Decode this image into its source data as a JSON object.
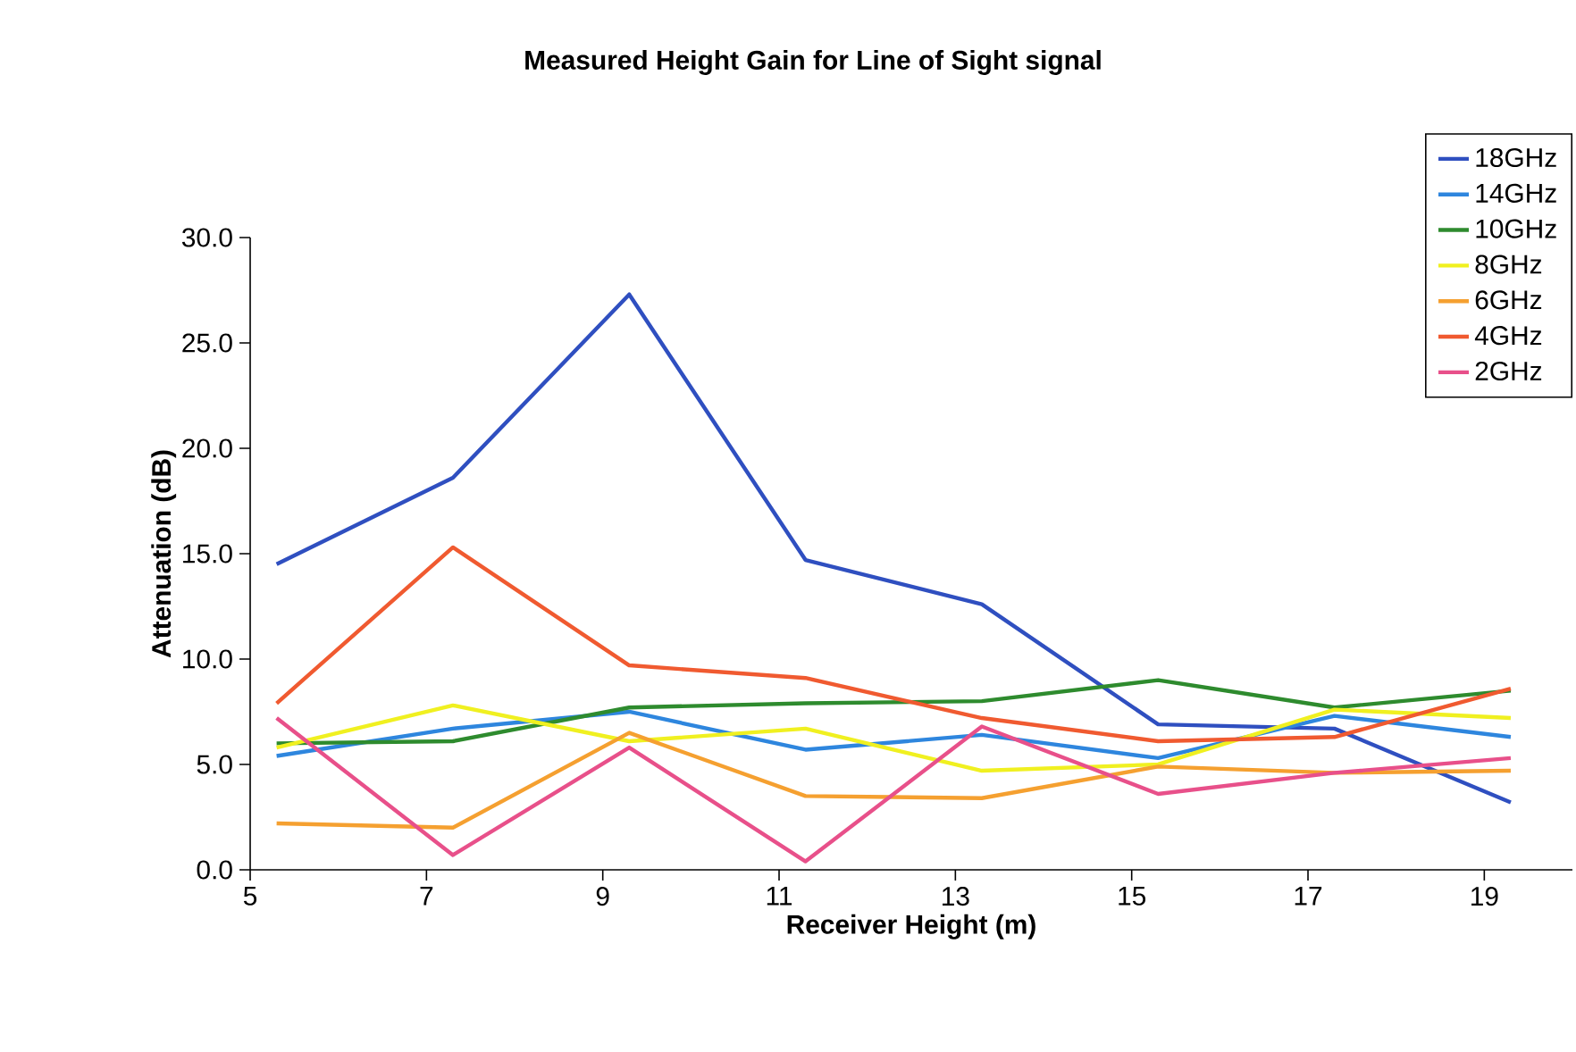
{
  "chart_data": {
    "type": "line",
    "title": "Measured Height Gain for Line of Sight signal",
    "xlabel": "Receiver Height (m)",
    "ylabel": "Attenuation (dB)",
    "x": [
      5.3,
      7.3,
      9.3,
      11.3,
      13.3,
      15.3,
      17.3,
      19.3
    ],
    "xlim": [
      5,
      20
    ],
    "xticks": [
      5,
      7,
      9,
      11,
      13,
      15,
      17,
      19
    ],
    "ylim": [
      0,
      30
    ],
    "yticks": [
      {
        "value": 0,
        "label": "0.0"
      },
      {
        "value": 5,
        "label": "5.0"
      },
      {
        "value": 10,
        "label": "10.0"
      },
      {
        "value": 15,
        "label": "15.0"
      },
      {
        "value": 20,
        "label": "20.0"
      },
      {
        "value": 25,
        "label": "25.0"
      },
      {
        "value": 30,
        "label": "30.0"
      }
    ],
    "grid": false,
    "legend": "top right",
    "marker": "none",
    "series": [
      {
        "name": "18GHz",
        "color": "#2f4fc0",
        "values": [
          14.5,
          18.6,
          27.3,
          14.7,
          12.6,
          6.9,
          6.7,
          3.2
        ]
      },
      {
        "name": "14GHz",
        "color": "#2e86de",
        "values": [
          5.4,
          6.7,
          7.5,
          5.7,
          6.4,
          5.3,
          7.3,
          6.3
        ]
      },
      {
        "name": "10GHz",
        "color": "#2e8b2e",
        "values": [
          6.0,
          6.1,
          7.7,
          7.9,
          8.0,
          9.0,
          7.7,
          8.5
        ]
      },
      {
        "name": "8GHz",
        "color": "#f0f020",
        "values": [
          5.8,
          7.8,
          6.1,
          6.7,
          4.7,
          5.0,
          7.6,
          7.2
        ]
      },
      {
        "name": "6GHz",
        "color": "#f5a030",
        "values": [
          2.2,
          2.0,
          6.5,
          3.5,
          3.4,
          4.9,
          4.6,
          4.7
        ]
      },
      {
        "name": "4GHz",
        "color": "#f05a30",
        "values": [
          7.9,
          15.3,
          9.7,
          9.1,
          7.2,
          6.1,
          6.3,
          8.6
        ]
      },
      {
        "name": "2GHz",
        "color": "#e8508a",
        "values": [
          7.2,
          0.7,
          5.8,
          0.4,
          6.8,
          3.6,
          4.6,
          5.3
        ]
      }
    ]
  }
}
